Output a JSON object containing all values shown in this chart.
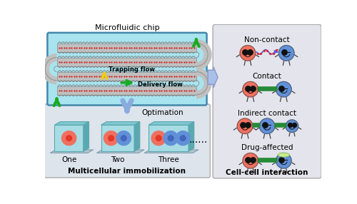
{
  "bg_color": "#ffffff",
  "chip_bg": "#a8e4ef",
  "chip_border": "#4488aa",
  "channel_gray": "#c0c0c0",
  "channel_edge": "#888888",
  "red_cell": "#f07060",
  "red_cell_inner": "#e03020",
  "blue_cell": "#6090d8",
  "blue_cell_inner": "#4060b8",
  "green_arrow": "#1aaa22",
  "yellow_arrow": "#f0d000",
  "blue_arrow": "#8aaade",
  "interaction_bg": "#e4e4ec",
  "bottom_bg": "#dde4ec",
  "chip_label": "Microfluidic chip",
  "trapping_label": "Trapping flow",
  "delivery_label": "Delivery flow",
  "optimation_label": "Optimation",
  "multicell_label": "Multicellular immobilization",
  "cellcell_label": "Cell-cell interaction",
  "box_labels": [
    "One",
    "Two",
    "Three"
  ],
  "interaction_labels": [
    "Non-contact",
    "Contact",
    "Indirect contact",
    "Drug-affected"
  ],
  "dots": "......",
  "teal_dark": "#5aa8b0",
  "teal_mid": "#80c8d0",
  "teal_light": "#a8dce4",
  "teal_top": "#70bcc4",
  "platform_color": "#b0c4cc",
  "platform_edge": "#7a9aaa"
}
